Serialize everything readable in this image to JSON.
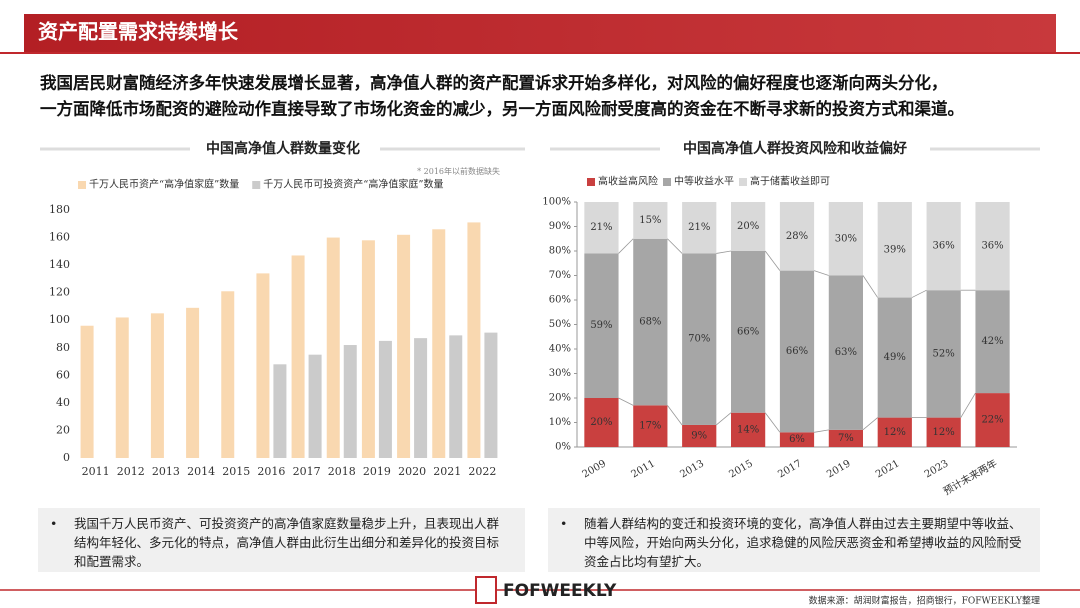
{
  "header": {
    "title": "资产配置需求持续增长"
  },
  "intro": [
    "我国居民财富随经济多年快速发展增长显著，高净值人群的资产配置诉求开始多样化，对风险的偏好程度也逐渐向两头分化，",
    "一方面降低市场配资的避险动作直接导致了市场化资金的减少，另一方面风险耐受度高的资金在不断寻求新的投资方式和渠道。"
  ],
  "chart_data": [
    {
      "type": "bar",
      "title": "中国高净值人群数量变化",
      "note": "* 2016年以前数据缺失",
      "categories": [
        "2011",
        "2012",
        "2013",
        "2014",
        "2015",
        "2016",
        "2017",
        "2018",
        "2019",
        "2020",
        "2021",
        "2022"
      ],
      "series": [
        {
          "name": "千万人民币资产“高净值家庭”数量",
          "color": "#f9d8b0",
          "values": [
            96,
            102,
            105,
            109,
            121,
            134,
            147,
            160,
            158,
            162,
            166,
            171
          ]
        },
        {
          "name": "千万人民币可投资资产“高净值家庭”数量",
          "color": "#cbcbcb",
          "values": [
            null,
            null,
            null,
            null,
            null,
            68,
            75,
            82,
            85,
            87,
            89,
            91
          ]
        }
      ],
      "ylim": [
        0,
        180
      ],
      "yticks": [
        0,
        20,
        40,
        60,
        80,
        100,
        120,
        140,
        160,
        180
      ]
    },
    {
      "type": "stacked_bar",
      "title": "中国高净值人群投资风险和收益偏好",
      "categories": [
        "2009",
        "2011",
        "2013",
        "2015",
        "2017",
        "2019",
        "2021",
        "2023",
        "预计未来两年"
      ],
      "series": [
        {
          "name": "高收益高风险",
          "color": "#c9403f",
          "values": [
            20,
            17,
            9,
            14,
            6,
            7,
            12,
            12,
            22
          ],
          "value_labels": [
            "20%",
            "17%",
            "9%",
            "14%",
            "6%",
            "7%",
            "12%",
            "12%",
            "22%"
          ]
        },
        {
          "name": "中等收益水平",
          "color": "#a6a6a6",
          "values": [
            59,
            68,
            70,
            66,
            66,
            63,
            49,
            52,
            42
          ],
          "value_labels": [
            "59%",
            "68%",
            "70%",
            "66%",
            "66%",
            "63%",
            "49%",
            "52%",
            "42%"
          ]
        },
        {
          "name": "高于储蓄收益即可",
          "color": "#d9d9d9",
          "values": [
            21,
            15,
            21,
            20,
            28,
            30,
            39,
            36,
            36
          ],
          "value_labels": [
            "21%",
            "15%",
            "21%",
            "20%",
            "28%",
            "30%",
            "39%",
            "36%",
            "36%"
          ]
        }
      ],
      "ylim": [
        0,
        100
      ],
      "yticks": [
        {
          "value": 0,
          "label": "0%"
        },
        {
          "value": 10,
          "label": "10%"
        },
        {
          "value": 20,
          "label": "20%"
        },
        {
          "value": 30,
          "label": "30%"
        },
        {
          "value": 40,
          "label": "40%"
        },
        {
          "value": 50,
          "label": "50%"
        },
        {
          "value": 60,
          "label": "60%"
        },
        {
          "value": 70,
          "label": "70%"
        },
        {
          "value": 80,
          "label": "80%"
        },
        {
          "value": 90,
          "label": "90%"
        },
        {
          "value": 100,
          "label": "100%"
        }
      ]
    }
  ],
  "bullets": [
    "我国千万人民币资产、可投资资产的高净值家庭数量稳步上升，且表现出人群结构年轻化、多元化的特点，高净值人群由此衍生出细分和差异化的投资目标和配置需求。",
    "随着人群结构的变迁和投资环境的变化，高净值人群由过去主要期望中等收益、中等风险，开始向两头分化，追求稳健的风险厌恶资金和希望搏收益的风险耐受资金占比均有望扩大。"
  ],
  "footer": {
    "logo": "FOFWEEKLY",
    "source": "数据来源：胡润财富报告，招商银行，FOFWEEKLY整理"
  }
}
